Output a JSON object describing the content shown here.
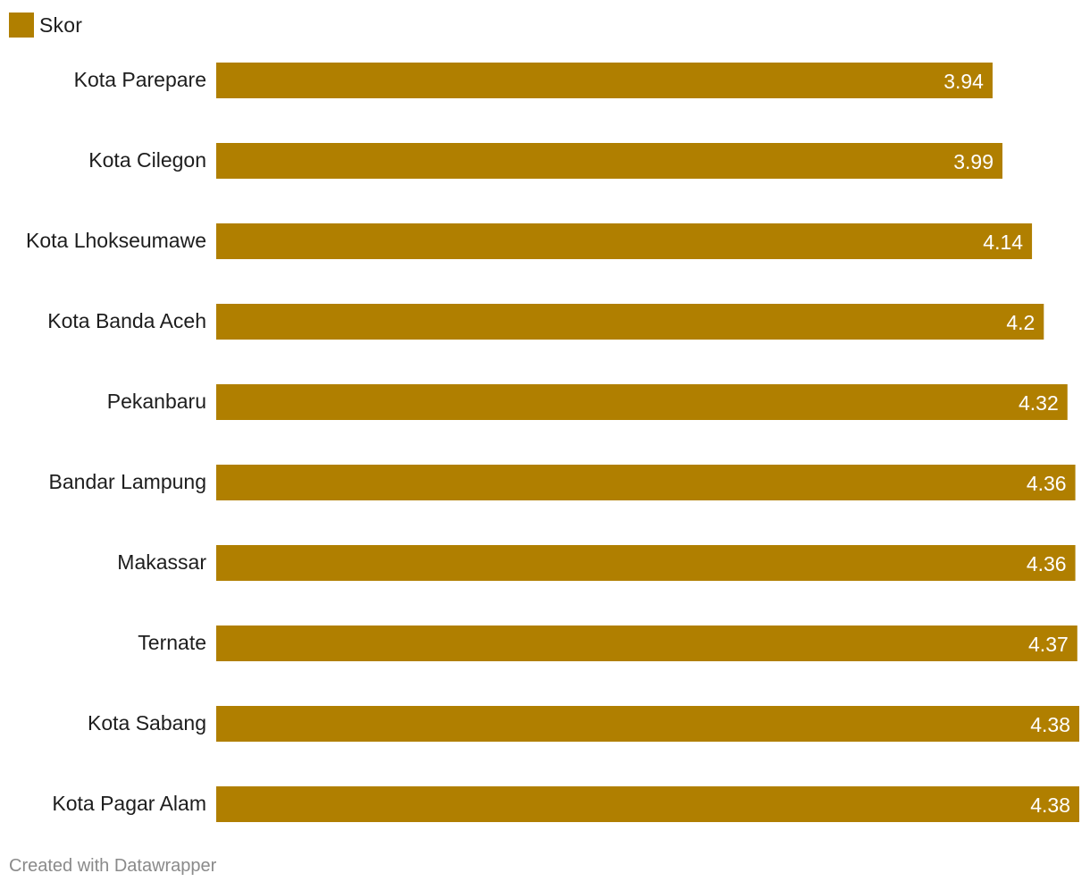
{
  "chart_data": {
    "type": "bar",
    "orientation": "horizontal",
    "categories": [
      "Kota Parepare",
      "Kota Cilegon",
      "Kota Lhokseumawe",
      "Kota Banda Aceh",
      "Pekanbaru",
      "Bandar Lampung",
      "Makassar",
      "Ternate",
      "Kota Sabang",
      "Kota Pagar Alam"
    ],
    "series": [
      {
        "name": "Skor",
        "values": [
          3.94,
          3.99,
          4.14,
          4.2,
          4.32,
          4.36,
          4.36,
          4.37,
          4.38,
          4.38
        ],
        "color": "#b07f00"
      }
    ],
    "value_labels": [
      "3.94",
      "3.99",
      "4.14",
      "4.2",
      "4.32",
      "4.36",
      "4.36",
      "4.37",
      "4.38",
      "4.38"
    ],
    "xlim": [
      0,
      4.38
    ],
    "grid": false,
    "legend": "top-left"
  },
  "legend": {
    "label": "Skor"
  },
  "footer": {
    "credit": "Created with Datawrapper"
  }
}
